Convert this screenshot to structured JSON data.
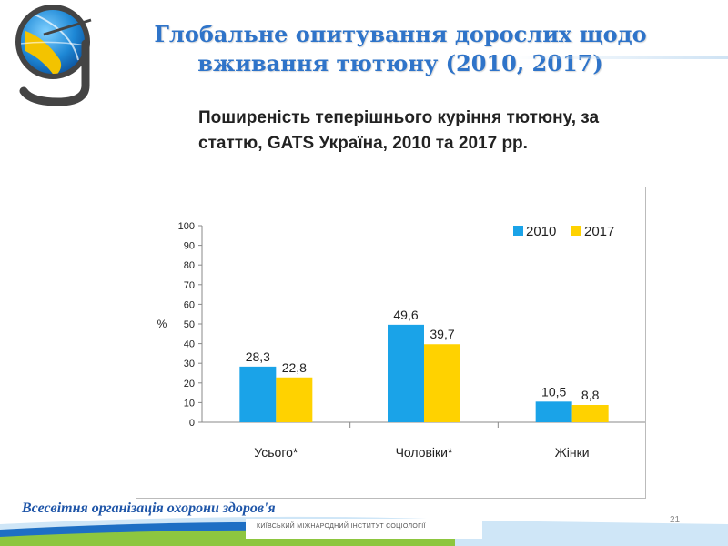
{
  "slide": {
    "title": "Глобальне опитування дорослих щодо вживання тютюну (2010, 2017)",
    "footer_org": "Всесвітня організація охорони здоров'я",
    "footer_institute": "Київський міжнародний інститут соціології",
    "page_number": "21"
  },
  "colors": {
    "series_2010": "#1aa3e8",
    "series_2017": "#ffd200",
    "title": "#2f74c9",
    "footer_blue": "#1e55a8",
    "footer_green": "#8dc63f"
  },
  "chart_data": {
    "type": "bar",
    "title": "Поширеність теперішнього куріння тютюну, за статтю, GATS Україна, 2010 та 2017 рр.",
    "xlabel": "",
    "ylabel": "%",
    "ylim": [
      0,
      100
    ],
    "yticks": [
      0,
      10,
      20,
      30,
      40,
      50,
      60,
      70,
      80,
      90,
      100
    ],
    "categories": [
      "Усього*",
      "Чоловіки*",
      "Жінки"
    ],
    "series": [
      {
        "name": "2010",
        "values": [
          28.3,
          49.6,
          10.5
        ],
        "labels": [
          "28,3",
          "49,6",
          "10,5"
        ]
      },
      {
        "name": "2017",
        "values": [
          22.8,
          39.7,
          8.8
        ],
        "labels": [
          "22,8",
          "39,7",
          "8,8"
        ]
      }
    ],
    "legend_position": "top-right",
    "grid": false
  }
}
